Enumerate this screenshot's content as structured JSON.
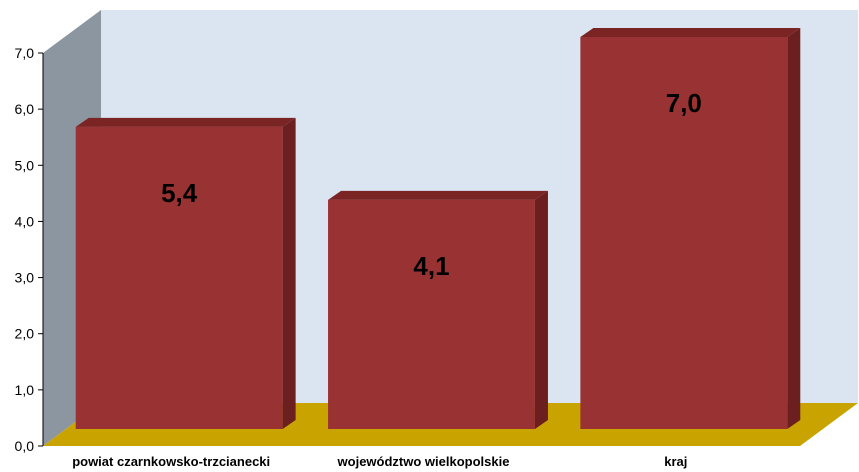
{
  "chart_data": {
    "type": "bar",
    "categories": [
      "powiat czarnkowsko-trzcianecki",
      "województwo wielkopolskie",
      "kraj"
    ],
    "values": [
      5.4,
      4.1,
      7.0
    ],
    "data_labels": [
      "5,4",
      "4,1",
      "7,0"
    ],
    "y_ticks": [
      "0,0",
      "1,0",
      "2,0",
      "3,0",
      "4,0",
      "5,0",
      "6,0",
      "7,0"
    ],
    "ylim": [
      0,
      7
    ],
    "title": "",
    "xlabel": "",
    "ylabel": "",
    "grid": false,
    "legend": "none",
    "style": "3d",
    "colors": {
      "bar_front": "#993333",
      "bar_top": "#7a2424",
      "bar_side": "#6b1f1f",
      "back_wall": "#dbe5f2",
      "side_wall": "#8c96a0",
      "floor": "#c9a400"
    }
  }
}
